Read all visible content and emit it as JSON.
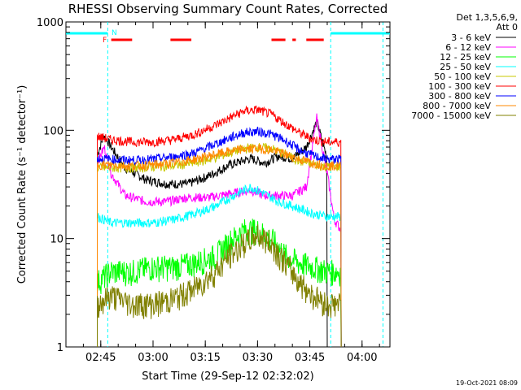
{
  "chart_data": {
    "type": "line",
    "title": "RHESSI Observing Summary Count Rates, Corrected",
    "xlabel": "Start Time (29-Sep-12 02:32:02)",
    "ylabel": "Corrected Count Rate (s⁻¹ detector⁻¹)",
    "y_scale": "log",
    "ylim": [
      1,
      1000
    ],
    "xlim": [
      "02:35",
      "04:08"
    ],
    "x_ticks": [
      "02:45",
      "03:00",
      "03:15",
      "03:30",
      "03:45",
      "04:00"
    ],
    "y_ticks": [
      "1",
      "10",
      "100",
      "1000"
    ],
    "legend_header": [
      "Det 1,3,5,6,9,",
      "Att 0"
    ],
    "legend_position": "outside-right",
    "footer_date": "19-Oct-2021 08:09",
    "flags": [
      {
        "label": "F",
        "color": "#ff0000",
        "segments": [
          [
            "02:48",
            "02:54"
          ],
          [
            "03:05",
            "03:11"
          ],
          [
            "03:34",
            "03:38"
          ],
          [
            "03:40",
            "03:41"
          ],
          [
            "03:44",
            "03:49"
          ]
        ]
      },
      {
        "label": "N",
        "color": "#00ffff",
        "segments": [
          [
            "02:35",
            "02:47"
          ],
          [
            "03:51",
            "04:08"
          ]
        ]
      }
    ],
    "night_markers": [
      "02:47",
      "03:51",
      "04:06"
    ],
    "series": [
      {
        "name": "3 - 6 keV",
        "color": "#000000",
        "x": [
          "02:44",
          "02:46",
          "02:48",
          "02:52",
          "02:58",
          "03:04",
          "03:10",
          "03:16",
          "03:22",
          "03:28",
          "03:32",
          "03:36",
          "03:40",
          "03:44",
          "03:47",
          "03:50"
        ],
        "values": [
          60,
          90,
          70,
          45,
          35,
          32,
          32,
          38,
          48,
          55,
          50,
          58,
          55,
          70,
          120,
          55
        ]
      },
      {
        "name": "6 - 12 keV",
        "color": "#ff00ff",
        "x": [
          "02:44",
          "02:46",
          "02:48",
          "02:52",
          "02:58",
          "03:04",
          "03:10",
          "03:16",
          "03:22",
          "03:28",
          "03:32",
          "03:36",
          "03:40",
          "03:44",
          "03:47",
          "03:50",
          "03:52",
          "03:54"
        ],
        "values": [
          50,
          70,
          40,
          25,
          22,
          22,
          24,
          24,
          26,
          28,
          25,
          25,
          25,
          30,
          130,
          40,
          15,
          12
        ]
      },
      {
        "name": "12 - 25 keV",
        "color": "#00ff00",
        "x": [
          "02:44",
          "02:48",
          "02:54",
          "03:00",
          "03:06",
          "03:12",
          "03:18",
          "03:22",
          "03:26",
          "03:30",
          "03:34",
          "03:38",
          "03:42",
          "03:46",
          "03:50",
          "03:54"
        ],
        "values": [
          4,
          5,
          5,
          5.5,
          5.5,
          6,
          7,
          9.5,
          12,
          12,
          10,
          7,
          6,
          5.5,
          5,
          5
        ]
      },
      {
        "name": "25 - 50 keV",
        "color": "#00ffff",
        "x": [
          "02:44",
          "02:48",
          "02:54",
          "03:00",
          "03:06",
          "03:12",
          "03:18",
          "03:24",
          "03:28",
          "03:32",
          "03:36",
          "03:40",
          "03:46",
          "03:50",
          "03:54"
        ],
        "values": [
          16,
          14,
          14,
          14,
          15,
          17,
          20,
          26,
          30,
          26,
          22,
          20,
          17,
          16,
          16
        ]
      },
      {
        "name": "50 - 100 keV",
        "color": "#c8c800",
        "x": [
          "02:44",
          "02:48",
          "02:54",
          "03:00",
          "03:06",
          "03:12",
          "03:18",
          "03:22",
          "03:26",
          "03:30",
          "03:34",
          "03:38",
          "03:42",
          "03:46",
          "03:50",
          "03:54"
        ],
        "values": [
          45,
          45,
          45,
          46,
          47,
          50,
          56,
          62,
          68,
          70,
          68,
          60,
          52,
          48,
          46,
          46
        ]
      },
      {
        "name": "100 - 300 keV",
        "color": "#ff0000",
        "x": [
          "02:44",
          "02:48",
          "02:54",
          "03:00",
          "03:06",
          "03:12",
          "03:18",
          "03:22",
          "03:26",
          "03:30",
          "03:34",
          "03:38",
          "03:42",
          "03:46",
          "03:50",
          "03:54"
        ],
        "values": [
          88,
          82,
          78,
          78,
          82,
          92,
          112,
          130,
          150,
          155,
          140,
          115,
          95,
          82,
          78,
          78
        ]
      },
      {
        "name": "300 - 800 keV",
        "color": "#0000ff",
        "x": [
          "02:44",
          "02:48",
          "02:54",
          "03:00",
          "03:06",
          "03:12",
          "03:18",
          "03:22",
          "03:26",
          "03:30",
          "03:34",
          "03:38",
          "03:42",
          "03:46",
          "03:50",
          "03:54"
        ],
        "values": [
          55,
          54,
          53,
          54,
          57,
          62,
          75,
          85,
          95,
          98,
          92,
          80,
          66,
          58,
          54,
          54
        ]
      },
      {
        "name": "800 - 7000 keV",
        "color": "#ff8800",
        "x": [
          "02:44",
          "02:48",
          "02:54",
          "03:00",
          "03:06",
          "03:12",
          "03:18",
          "03:22",
          "03:26",
          "03:30",
          "03:34",
          "03:38",
          "03:42",
          "03:46",
          "03:50",
          "03:54"
        ],
        "values": [
          48,
          48,
          47,
          48,
          50,
          54,
          60,
          64,
          67,
          68,
          66,
          60,
          54,
          50,
          47,
          47
        ]
      },
      {
        "name": "7000 - 15000 keV",
        "color": "#808000",
        "x": [
          "02:44",
          "02:48",
          "02:54",
          "03:00",
          "03:06",
          "03:12",
          "03:18",
          "03:22",
          "03:26",
          "03:30",
          "03:34",
          "03:38",
          "03:42",
          "03:46",
          "03:50",
          "03:54"
        ],
        "values": [
          2.5,
          3,
          2.5,
          2.5,
          2.8,
          3.5,
          5,
          7,
          9,
          11,
          9,
          6,
          4,
          3,
          2.5,
          2.5
        ]
      }
    ]
  }
}
